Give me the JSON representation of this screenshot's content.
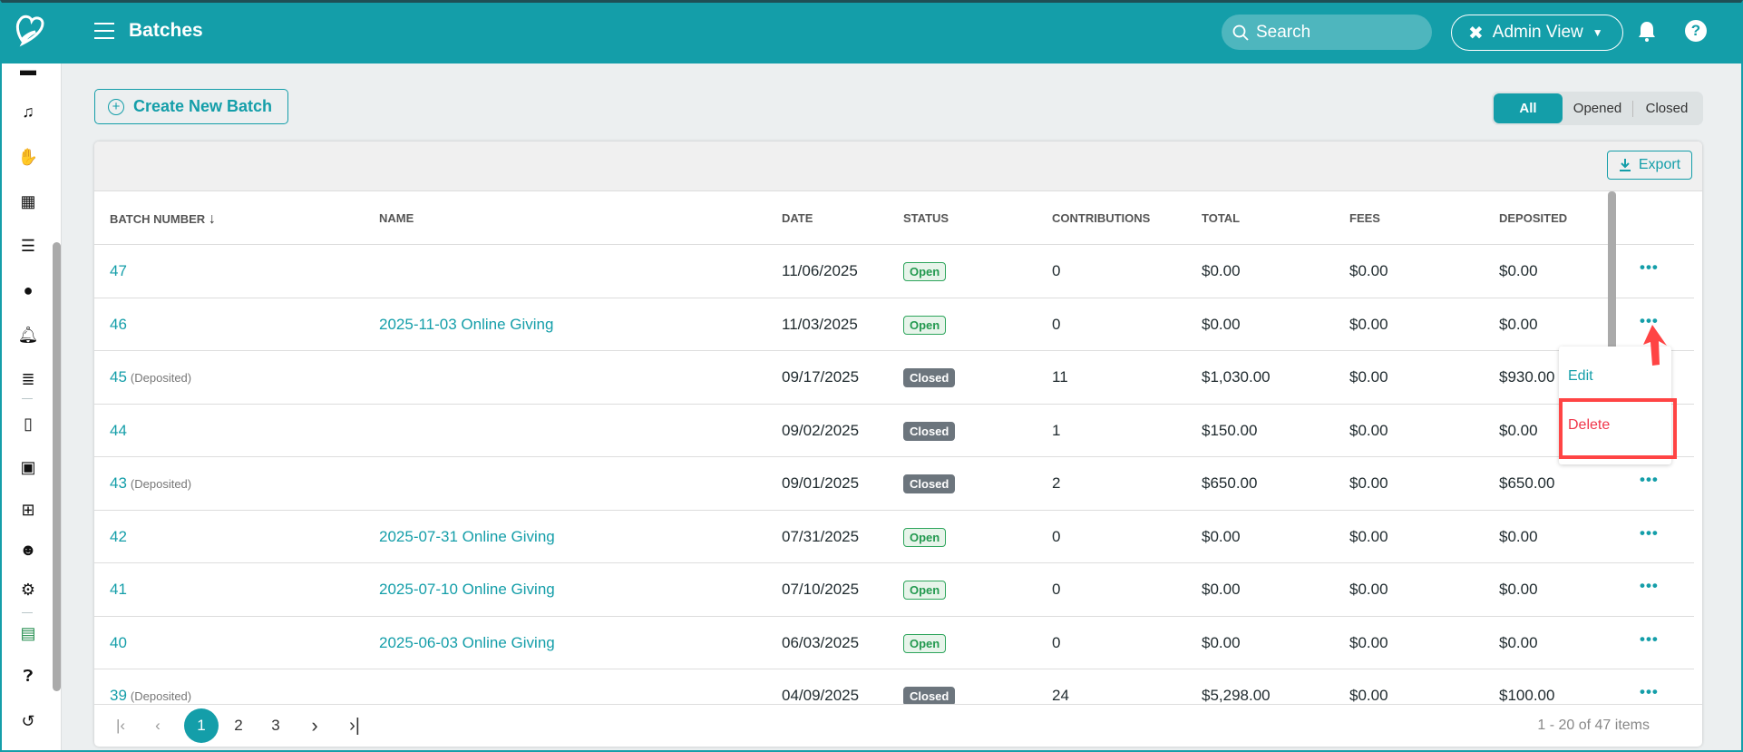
{
  "header": {
    "title": "Batches",
    "search_placeholder": "Search",
    "admin_view": "Admin View",
    "colors": {
      "brand": "#149ea9"
    }
  },
  "sidebar": {
    "icons": [
      "card-icon",
      "music-icon",
      "handshake-icon",
      "calendar-icon",
      "list-icon",
      "clock-icon",
      "bell-icon",
      "chart-icon",
      "mobile-icon",
      "money-icon",
      "calculator-icon",
      "users-gear-icon",
      "gear-icon",
      "gift-icon",
      "help-icon",
      "history-icon"
    ]
  },
  "toolbar": {
    "create_label": "Create New Batch",
    "filters": [
      "All",
      "Opened",
      "Closed"
    ],
    "active_filter": "All",
    "export_label": "Export"
  },
  "table": {
    "columns": [
      "BATCH NUMBER",
      "NAME",
      "DATE",
      "STATUS",
      "CONTRIBUTIONS",
      "TOTAL",
      "FEES",
      "DEPOSITED"
    ],
    "sort": {
      "column": "BATCH NUMBER",
      "direction": "descending"
    },
    "rows": [
      {
        "number": "47",
        "deposited": "",
        "name": "",
        "date": "11/06/2025",
        "status": "Open",
        "contributions": "0",
        "total": "$0.00",
        "fees": "$0.00",
        "deposited_amt": "$0.00"
      },
      {
        "number": "46",
        "deposited": "",
        "name": "2025-11-03 Online Giving",
        "date": "11/03/2025",
        "status": "Open",
        "contributions": "0",
        "total": "$0.00",
        "fees": "$0.00",
        "deposited_amt": "$0.00"
      },
      {
        "number": "45",
        "deposited": "(Deposited)",
        "name": "",
        "date": "09/17/2025",
        "status": "Closed",
        "contributions": "11",
        "total": "$1,030.00",
        "fees": "$0.00",
        "deposited_amt": "$930.00"
      },
      {
        "number": "44",
        "deposited": "",
        "name": "",
        "date": "09/02/2025",
        "status": "Closed",
        "contributions": "1",
        "total": "$150.00",
        "fees": "$0.00",
        "deposited_amt": "$0.00"
      },
      {
        "number": "43",
        "deposited": "(Deposited)",
        "name": "",
        "date": "09/01/2025",
        "status": "Closed",
        "contributions": "2",
        "total": "$650.00",
        "fees": "$0.00",
        "deposited_amt": "$650.00"
      },
      {
        "number": "42",
        "deposited": "",
        "name": "2025-07-31 Online Giving",
        "date": "07/31/2025",
        "status": "Open",
        "contributions": "0",
        "total": "$0.00",
        "fees": "$0.00",
        "deposited_amt": "$0.00"
      },
      {
        "number": "41",
        "deposited": "",
        "name": "2025-07-10 Online Giving",
        "date": "07/10/2025",
        "status": "Open",
        "contributions": "0",
        "total": "$0.00",
        "fees": "$0.00",
        "deposited_amt": "$0.00"
      },
      {
        "number": "40",
        "deposited": "",
        "name": "2025-06-03 Online Giving",
        "date": "06/03/2025",
        "status": "Open",
        "contributions": "0",
        "total": "$0.00",
        "fees": "$0.00",
        "deposited_amt": "$0.00"
      },
      {
        "number": "39",
        "deposited": "(Deposited)",
        "name": "",
        "date": "04/09/2025",
        "status": "Closed",
        "contributions": "24",
        "total": "$5,298.00",
        "fees": "$0.00",
        "deposited_amt": "$100.00"
      }
    ]
  },
  "row_menu": {
    "edit": "Edit",
    "delete": "Delete"
  },
  "pagination": {
    "pages": [
      "1",
      "2",
      "3"
    ],
    "current": "1",
    "info": "1 - 20 of 47 items"
  }
}
